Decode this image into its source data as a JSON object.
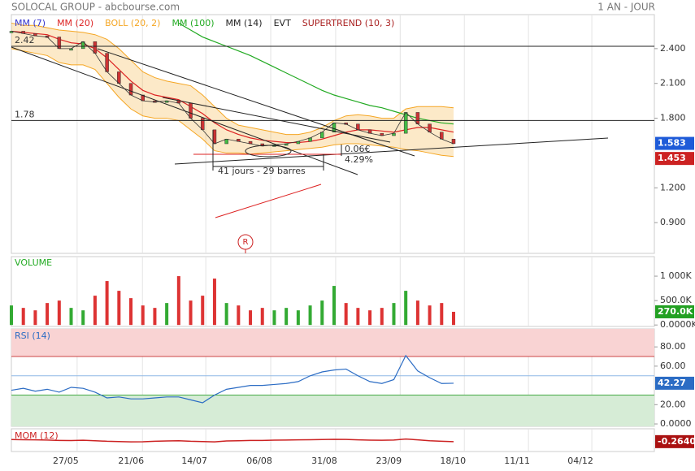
{
  "header": {
    "title": "SOLOCAL GROUP - abcbourse.com",
    "period": "1 AN - JOUR"
  },
  "chart_data": [
    {
      "type": "line",
      "color": "#333333",
      "x": [
        0,
        3,
        6,
        9,
        12,
        15,
        18,
        21,
        24,
        27,
        30,
        33,
        36,
        39,
        42,
        45,
        48,
        51,
        54,
        57,
        60,
        63,
        66,
        69,
        72,
        75,
        78,
        81,
        84,
        87,
        90,
        93,
        96,
        99,
        102,
        105,
        108,
        111
      ],
      "values": [
        2.55,
        2.53,
        2.51,
        2.5,
        2.4,
        2.4,
        2.46,
        2.36,
        2.2,
        2.1,
        2.0,
        1.95,
        1.94,
        1.95,
        1.93,
        1.8,
        1.7,
        1.58,
        1.62,
        1.6,
        1.58,
        1.56,
        1.57,
        1.58,
        1.6,
        1.63,
        1.68,
        1.76,
        1.75,
        1.7,
        1.67,
        1.65,
        1.67,
        1.85,
        1.75,
        1.68,
        1.62,
        1.58
      ],
      "series": [
        {
          "name": "MM (7)",
          "color": "#3333cc"
        },
        {
          "name": "MM (20)",
          "color": "#dd2222",
          "values": [
            2.55,
            2.54,
            2.53,
            2.52,
            2.48,
            2.45,
            2.44,
            2.4,
            2.32,
            2.22,
            2.12,
            2.04,
            2.0,
            1.98,
            1.96,
            1.9,
            1.84,
            1.76,
            1.7,
            1.66,
            1.63,
            1.61,
            1.6,
            1.59,
            1.59,
            1.6,
            1.62,
            1.65,
            1.68,
            1.7,
            1.7,
            1.69,
            1.68,
            1.7,
            1.72,
            1.72,
            1.7,
            1.68
          ]
        },
        {
          "name": "BOLL (20, 2)",
          "color": "#f5a623",
          "upper": [
            2.62,
            2.6,
            2.6,
            2.58,
            2.56,
            2.55,
            2.54,
            2.52,
            2.48,
            2.4,
            2.3,
            2.2,
            2.15,
            2.12,
            2.1,
            2.08,
            2.0,
            1.9,
            1.8,
            1.74,
            1.72,
            1.7,
            1.68,
            1.66,
            1.66,
            1.68,
            1.72,
            1.78,
            1.82,
            1.83,
            1.82,
            1.8,
            1.8,
            1.88,
            1.9,
            1.9,
            1.9,
            1.89
          ],
          "lower": [
            2.4,
            2.38,
            2.36,
            2.34,
            2.28,
            2.26,
            2.26,
            2.22,
            2.1,
            1.98,
            1.88,
            1.82,
            1.8,
            1.8,
            1.78,
            1.7,
            1.62,
            1.52,
            1.5,
            1.5,
            1.49,
            1.5,
            1.51,
            1.52,
            1.53,
            1.54,
            1.55,
            1.57,
            1.58,
            1.58,
            1.57,
            1.56,
            1.55,
            1.53,
            1.52,
            1.5,
            1.48,
            1.47
          ]
        },
        {
          "name": "MM (100)",
          "color": "#22aa22",
          "values": [
            null,
            null,
            null,
            null,
            null,
            null,
            null,
            null,
            null,
            null,
            null,
            null,
            null,
            null,
            2.62,
            2.56,
            2.5,
            2.46,
            2.42,
            2.38,
            2.34,
            2.29,
            2.24,
            2.19,
            2.14,
            2.09,
            2.04,
            2.0,
            1.97,
            1.94,
            1.91,
            1.89,
            1.86,
            1.83,
            1.8,
            1.78,
            1.76,
            1.75
          ]
        },
        {
          "name": "MM (14)",
          "color": "#222222"
        },
        {
          "name": "EVT",
          "color": "#222222"
        },
        {
          "name": "SUPERTREND (10, 3)",
          "color": "#aa2222"
        }
      ],
      "xlim": [
        0,
        161.4
      ],
      "xticks": [
        {
          "value": 16.5,
          "label": "27/05"
        },
        {
          "value": 32.9,
          "label": "21/06"
        },
        {
          "value": 48.8,
          "label": "14/07"
        },
        {
          "value": 65.1,
          "label": "06/08"
        },
        {
          "value": 81.4,
          "label": "31/08"
        },
        {
          "value": 97.6,
          "label": "23/09"
        },
        {
          "value": 113.7,
          "label": "18/10"
        },
        {
          "value": 129.8,
          "label": "11/11"
        },
        {
          "value": 145.7,
          "label": "04/12"
        }
      ],
      "ylim": [
        0.635,
        2.693
      ],
      "yticks": [
        {
          "value": 2.4,
          "label": "2.400"
        },
        {
          "value": 2.1,
          "label": "2.100"
        },
        {
          "value": 1.8,
          "label": "1.800"
        },
        {
          "value": 1.2,
          "label": "1.200"
        },
        {
          "value": 0.9,
          "label": "0.900"
        }
      ],
      "hlines": [
        2.42,
        1.78
      ],
      "badges": [
        {
          "value": 1.583,
          "color": "#1e5bd8"
        },
        {
          "value": 1.453,
          "color": "#cc2222"
        }
      ],
      "annotations": [
        "41 jours - 29 barres",
        "0.06€",
        "4.29%",
        "R"
      ]
    },
    {
      "type": "bar",
      "title": "VOLUME",
      "up_color": "#33aa33",
      "down_color": "#dd3333",
      "values": [
        400000,
        350000,
        300000,
        450000,
        500000,
        350000,
        300000,
        600000,
        900000,
        700000,
        550000,
        400000,
        350000,
        450000,
        1000000,
        500000,
        600000,
        950000,
        450000,
        400000,
        300000,
        350000,
        300000,
        350000,
        300000,
        400000,
        500000,
        800000,
        450000,
        350000,
        300000,
        350000,
        450000,
        700000,
        500000,
        400000,
        450000,
        270000
      ],
      "ylim": [
        -30000,
        1400000
      ],
      "yticks": [
        {
          "value": 1000000,
          "label": "1 000K"
        },
        {
          "value": 500000,
          "label": "500.0K"
        },
        {
          "value": 0,
          "label": "0.0000K"
        }
      ],
      "badges": [
        {
          "value": 270000,
          "label": "270.0K",
          "color": "#22a022"
        }
      ]
    },
    {
      "type": "line",
      "title": "RSI (14)",
      "color": "#2b6cc4",
      "values": [
        35,
        37,
        34,
        36,
        33,
        38,
        37,
        33,
        27,
        28,
        26,
        26,
        27,
        28,
        28,
        25,
        22,
        30,
        36,
        38,
        40,
        40,
        41,
        42,
        44,
        50,
        54,
        56,
        57,
        50,
        44,
        42,
        46,
        71,
        55,
        48,
        42,
        42.27
      ],
      "ylim": [
        -2.5,
        98.7
      ],
      "yticks": [
        {
          "value": 80,
          "label": "80.00"
        },
        {
          "value": 60,
          "label": "60.00"
        },
        {
          "value": 20,
          "label": "20.00"
        },
        {
          "value": 0,
          "label": "0.0000"
        }
      ],
      "overbought": 70,
      "oversold": 30,
      "midline": 50,
      "badges": [
        {
          "value": 42.27,
          "color": "#2b6cc4"
        }
      ]
    },
    {
      "type": "line",
      "title": "MOM (12)",
      "color": "#cc2222",
      "values": [
        0.1,
        0.08,
        0.05,
        0.02,
        -0.05,
        -0.08,
        -0.02,
        -0.1,
        -0.2,
        -0.25,
        -0.3,
        -0.28,
        -0.2,
        -0.15,
        -0.1,
        -0.2,
        -0.25,
        -0.3,
        -0.15,
        -0.1,
        -0.05,
        -0.05,
        0,
        0.02,
        0.05,
        0.08,
        0.1,
        0.15,
        0.12,
        0.05,
        0,
        -0.02,
        0.02,
        0.2,
        0.05,
        -0.1,
        -0.2,
        -0.264
      ],
      "ylim": [
        -2,
        2
      ],
      "badges": [
        {
          "value": -0.264,
          "label": "-0.2640",
          "color": "#aa1111"
        }
      ]
    }
  ]
}
